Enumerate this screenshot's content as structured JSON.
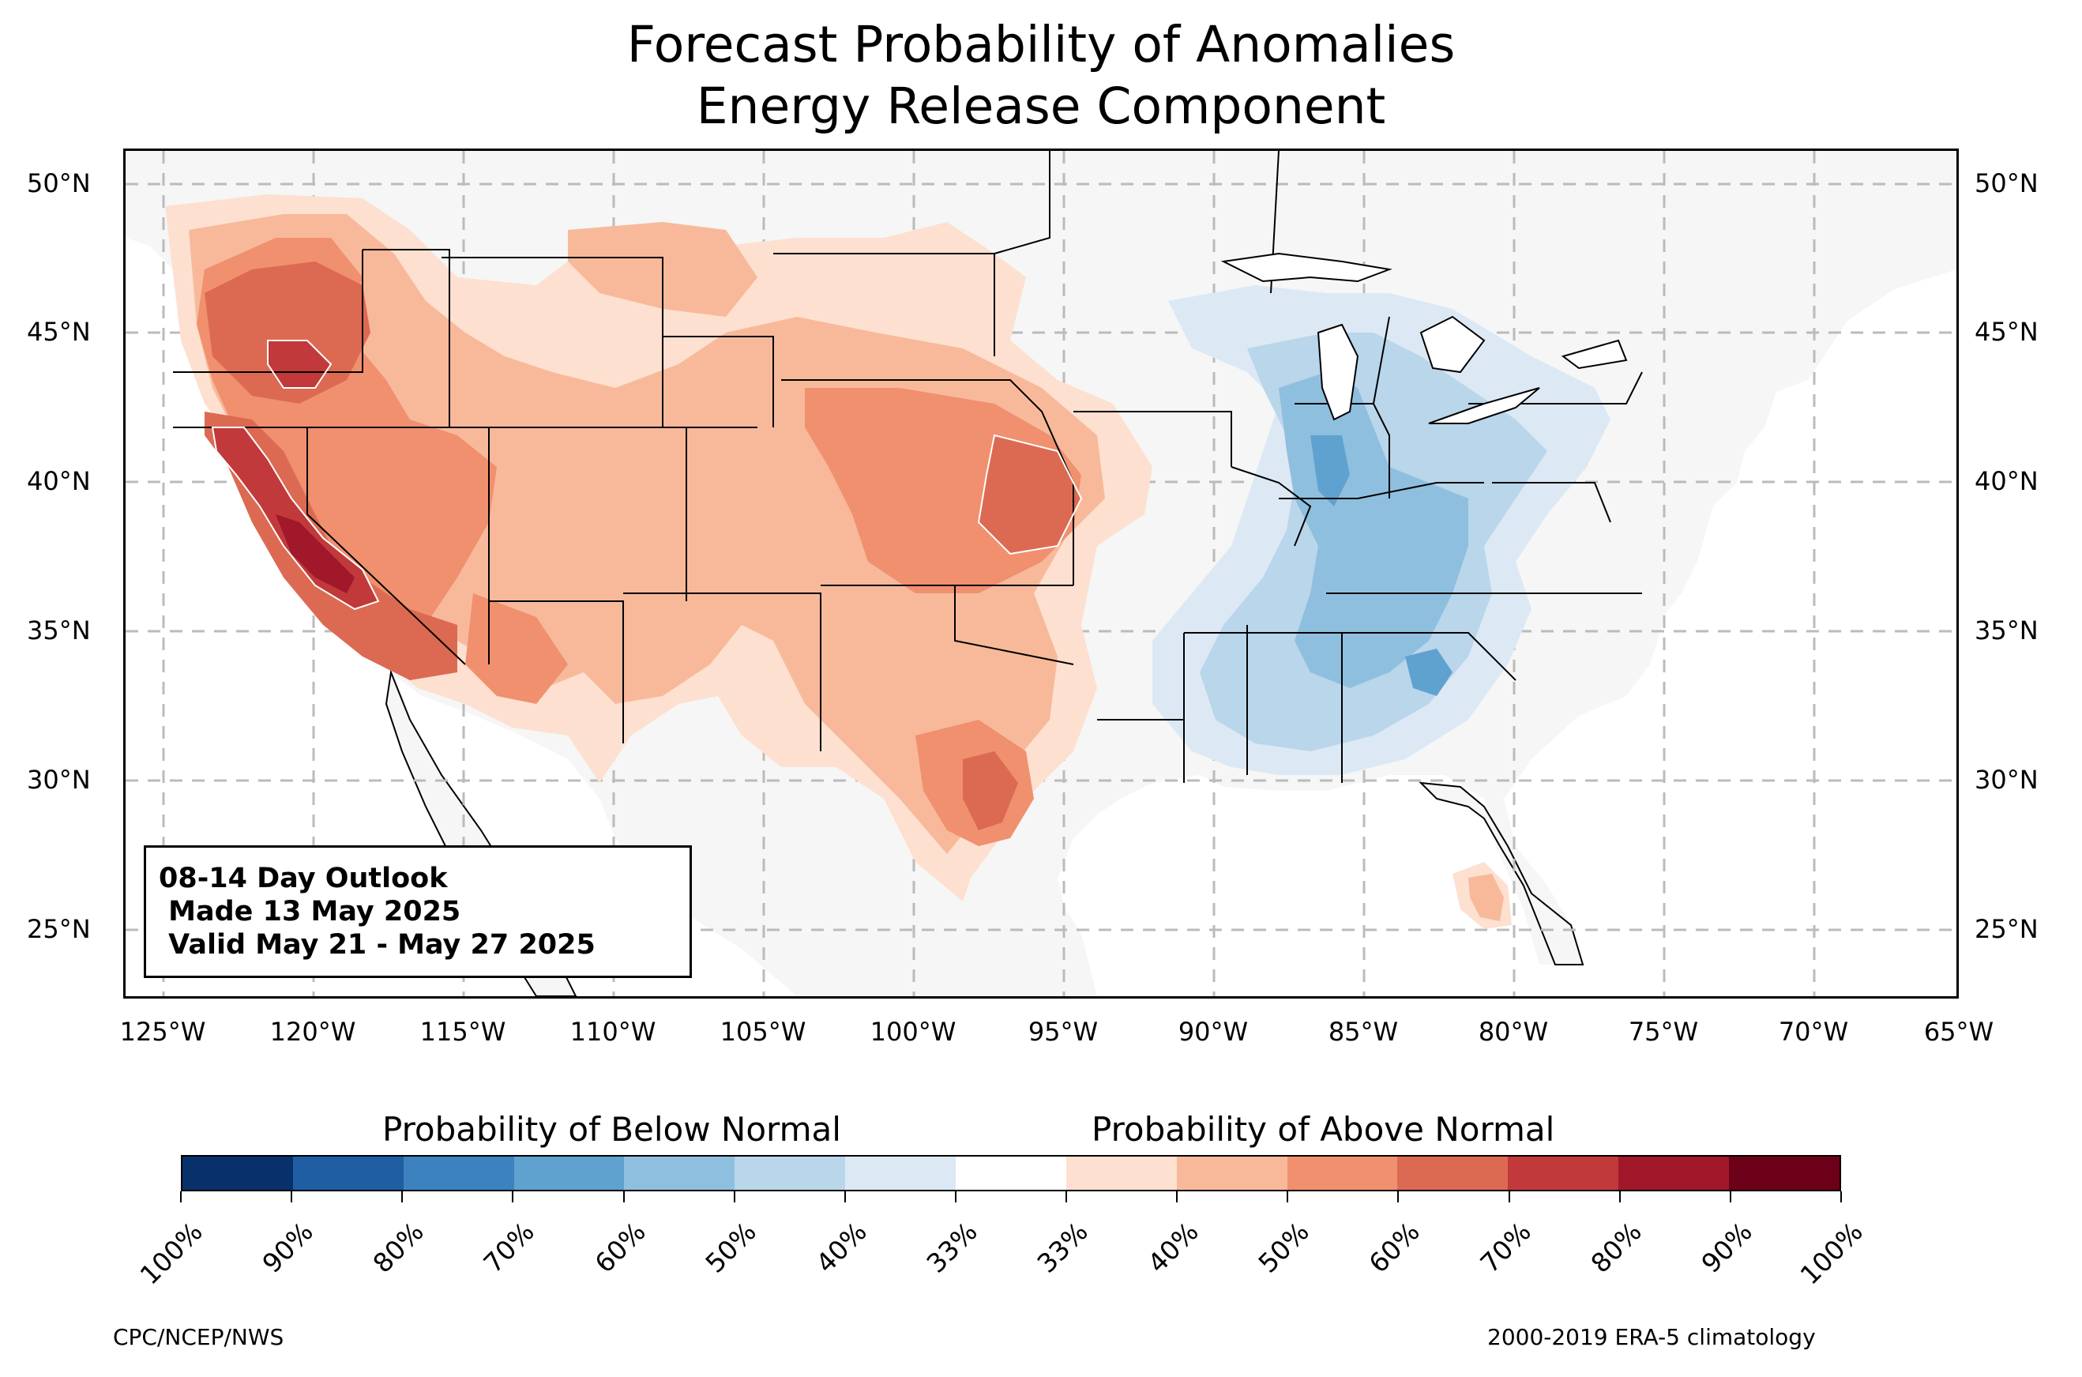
{
  "title_line1": "Forecast Probability of Anomalies",
  "title_line2": "Energy Release Component",
  "lat_labels": [
    "50°N",
    "45°N",
    "40°N",
    "35°N",
    "30°N",
    "25°N"
  ],
  "lon_labels": [
    "125°W",
    "120°W",
    "115°W",
    "110°W",
    "105°W",
    "100°W",
    "95°W",
    "90°W",
    "85°W",
    "80°W",
    "75°W",
    "70°W",
    "65°W"
  ],
  "info_box": {
    "line1": "08-14 Day Outlook",
    "line2": " Made 13 May 2025",
    "line3": " Valid May 21 - May 27 2025"
  },
  "colorbar": {
    "below_label": "Probability of Below Normal",
    "above_label": "Probability of Above Normal",
    "tick_labels": [
      "100%",
      "90%",
      "80%",
      "70%",
      "60%",
      "50%",
      "40%",
      "33%",
      "33%",
      "40%",
      "50%",
      "60%",
      "70%",
      "80%",
      "90%",
      "100%"
    ],
    "colors": [
      "#08306b",
      "#1f5ea3",
      "#3b82bf",
      "#5fa2d0",
      "#8fbfdf",
      "#b9d6ea",
      "#dce9f4",
      "#ffffff",
      "#fde0d0",
      "#f8b99b",
      "#f0906f",
      "#dc6a52",
      "#c1393a",
      "#a0182a",
      "#6b0018"
    ]
  },
  "footer_left": "CPC/NCEP/NWS",
  "footer_right": "2000-2019 ERA-5 climatology",
  "colors": {
    "land": "#f5f6f5",
    "above_40": "#fde0d0",
    "above_50": "#f8b99b",
    "above_60": "#f0906f",
    "above_70": "#dc6a52",
    "above_80": "#c1393a",
    "above_90": "#a0182a",
    "below_40": "#dce9f4",
    "below_50": "#b9d6ea",
    "below_60": "#8fbfdf",
    "below_70": "#5fa2d0"
  }
}
